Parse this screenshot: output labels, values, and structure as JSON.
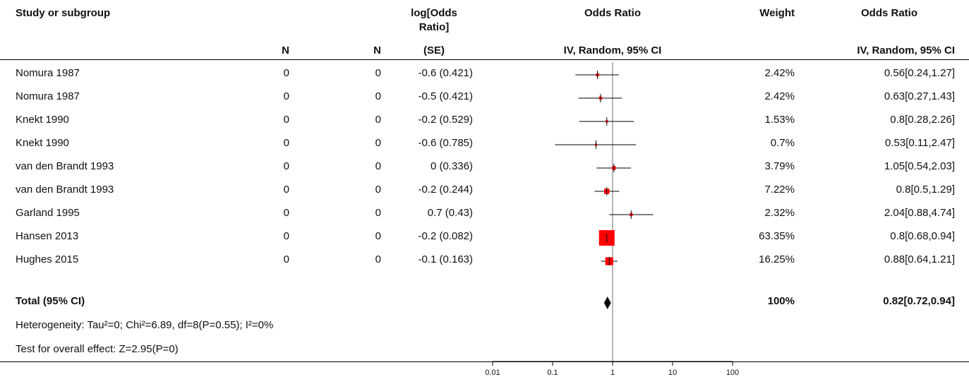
{
  "header": {
    "study": "Study or subgroup",
    "logor_line1": "log[Odds",
    "logor_line2": "Ratio]",
    "or_plot": "Odds Ratio",
    "weight": "Weight",
    "or_text": "Odds Ratio",
    "n1": "N",
    "n2": "N",
    "se": "(SE)",
    "method_plot": "IV, Random, 95% CI",
    "method_text": "IV, Random, 95% CI"
  },
  "rows": [
    {
      "study": "Nomura 1987",
      "n1": "0",
      "n2": "0",
      "logor": "-0.6 (0.421)",
      "weight": "2.42%",
      "ci": "0.56[0.24,1.27]"
    },
    {
      "study": "Nomura 1987",
      "n1": "0",
      "n2": "0",
      "logor": "-0.5 (0.421)",
      "weight": "2.42%",
      "ci": "0.63[0.27,1.43]"
    },
    {
      "study": "Knekt 1990",
      "n1": "0",
      "n2": "0",
      "logor": "-0.2 (0.529)",
      "weight": "1.53%",
      "ci": "0.8[0.28,2.26]"
    },
    {
      "study": "Knekt 1990",
      "n1": "0",
      "n2": "0",
      "logor": "-0.6 (0.785)",
      "weight": "0.7%",
      "ci": "0.53[0.11,2.47]"
    },
    {
      "study": "van den Brandt 1993",
      "n1": "0",
      "n2": "0",
      "logor": "0 (0.336)",
      "weight": "3.79%",
      "ci": "1.05[0.54,2.03]"
    },
    {
      "study": "van den Brandt 1993",
      "n1": "0",
      "n2": "0",
      "logor": "-0.2 (0.244)",
      "weight": "7.22%",
      "ci": "0.8[0.5,1.29]"
    },
    {
      "study": "Garland 1995",
      "n1": "0",
      "n2": "0",
      "logor": "0.7 (0.43)",
      "weight": "2.32%",
      "ci": "2.04[0.88,4.74]"
    },
    {
      "study": "Hansen 2013",
      "n1": "0",
      "n2": "0",
      "logor": "-0.2 (0.082)",
      "weight": "63.35%",
      "ci": "0.8[0.68,0.94]"
    },
    {
      "study": "Hughes 2015",
      "n1": "0",
      "n2": "0",
      "logor": "-0.1 (0.163)",
      "weight": "16.25%",
      "ci": "0.88[0.64,1.21]"
    }
  ],
  "total": {
    "label": "Total (95% CI)",
    "weight": "100%",
    "ci": "0.82[0.72,0.94]"
  },
  "heterogeneity": "Heterogeneity: Tau²=0; Chi²=6.89, df=8(P=0.55); I²=0%",
  "overall_effect": "Test for overall effect: Z=2.95(P=0)",
  "colors": {
    "marker": "#ff0000",
    "line": "#000000",
    "refline": "#888888"
  },
  "chart_data": {
    "type": "forest",
    "scale": "log",
    "xlim": [
      0.01,
      100
    ],
    "ticks": [
      {
        "value": 0.01,
        "label": "0.01"
      },
      {
        "value": 0.1,
        "label": "0.1"
      },
      {
        "value": 1,
        "label": "1"
      },
      {
        "value": 10,
        "label": "10"
      },
      {
        "value": 100,
        "label": "100"
      }
    ],
    "studies": [
      {
        "or": 0.56,
        "lo": 0.24,
        "hi": 1.27,
        "weight": 2.42
      },
      {
        "or": 0.63,
        "lo": 0.27,
        "hi": 1.43,
        "weight": 2.42
      },
      {
        "or": 0.8,
        "lo": 0.28,
        "hi": 2.26,
        "weight": 1.53
      },
      {
        "or": 0.53,
        "lo": 0.11,
        "hi": 2.47,
        "weight": 0.7
      },
      {
        "or": 1.05,
        "lo": 0.54,
        "hi": 2.03,
        "weight": 3.79
      },
      {
        "or": 0.8,
        "lo": 0.5,
        "hi": 1.29,
        "weight": 7.22
      },
      {
        "or": 2.04,
        "lo": 0.88,
        "hi": 4.74,
        "weight": 2.32
      },
      {
        "or": 0.8,
        "lo": 0.68,
        "hi": 0.94,
        "weight": 63.35
      },
      {
        "or": 0.88,
        "lo": 0.64,
        "hi": 1.21,
        "weight": 16.25
      }
    ],
    "total": {
      "or": 0.82,
      "lo": 0.72,
      "hi": 0.94
    }
  }
}
